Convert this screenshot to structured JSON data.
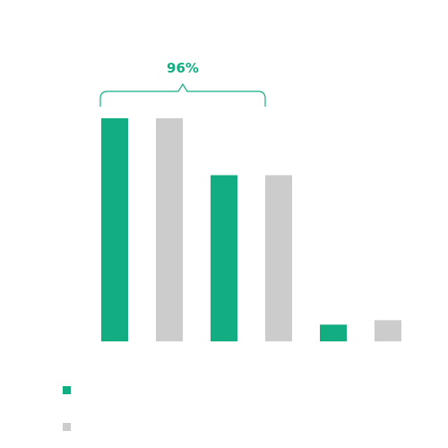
{
  "chart_data": {
    "type": "bar",
    "categories": [
      "",
      "",
      ""
    ],
    "series": [
      {
        "values": [
          100,
          74.5,
          7.5
        ],
        "color": "#12ae81"
      },
      {
        "values": [
          100,
          74.5,
          9.5
        ],
        "color": "#cccccc"
      }
    ],
    "ylim": [
      0,
      100
    ],
    "grid": false,
    "legend_position": "bottom-left",
    "annotation": {
      "text": "96%",
      "spans_categories": [
        0,
        1
      ],
      "color": "#12ae81"
    }
  }
}
